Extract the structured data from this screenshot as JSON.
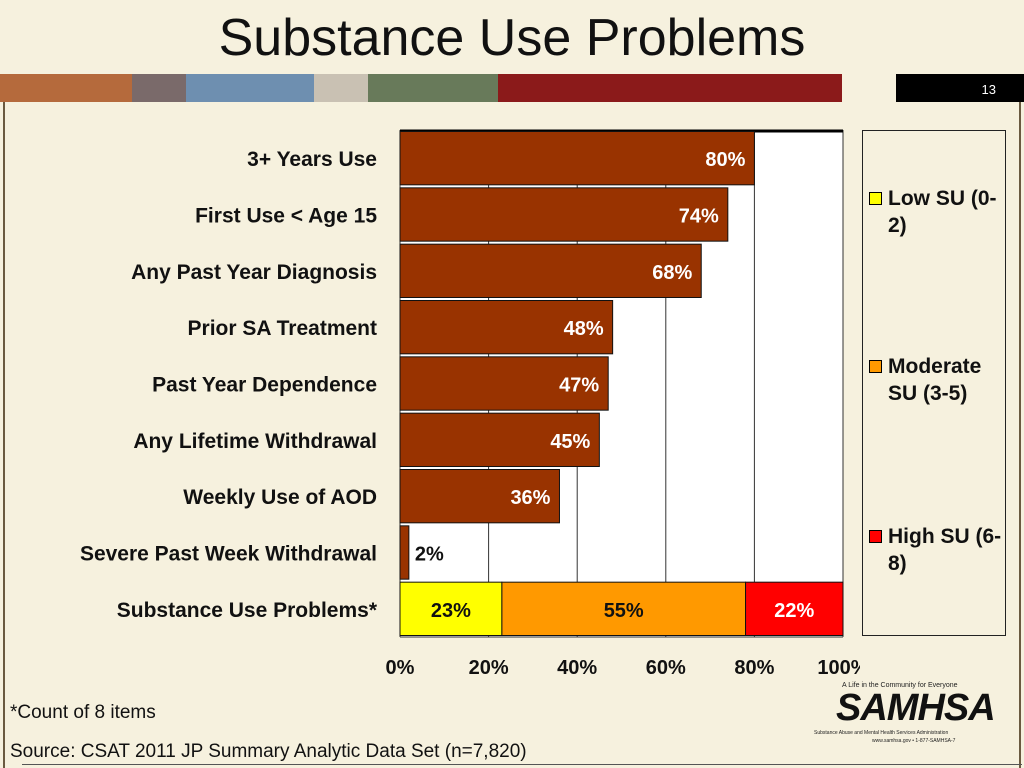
{
  "slide": {
    "title": "Substance Use Problems",
    "page_number": "13",
    "strip_colors": [
      "#b56a3c",
      "#7a6a6a",
      "#6e8fb0",
      "#c9c1b3",
      "#687a5a",
      "#8b1a1a",
      "#f6f1de"
    ]
  },
  "chart_data": {
    "type": "bar",
    "orientation": "horizontal",
    "title": "",
    "xlabel": "",
    "ylabel": "",
    "xlim": [
      0,
      100
    ],
    "xticks": [
      "0%",
      "20%",
      "40%",
      "60%",
      "80%",
      "100%"
    ],
    "grid": true,
    "legend_position": "right",
    "categories": [
      "3+ Years Use",
      "First Use < Age 15",
      "Any Past Year Diagnosis",
      "Prior SA Treatment",
      "Past Year Dependence",
      "Any Lifetime Withdrawal",
      "Weekly Use of AOD",
      "Severe Past Week Withdrawal"
    ],
    "values": [
      80,
      74,
      68,
      48,
      47,
      45,
      36,
      2
    ],
    "value_labels": [
      "80%",
      "74%",
      "68%",
      "48%",
      "47%",
      "45%",
      "36%",
      "2%"
    ],
    "bar_color": "#993300",
    "stacked_bar": {
      "category": "Substance Use Problems*",
      "segments": [
        {
          "name": "Low SU (0-2)",
          "value": 23,
          "label": "23%",
          "color": "#ffff00"
        },
        {
          "name": "Moderate SU (3-5)",
          "value": 55,
          "label": "55%",
          "color": "#ff9900"
        },
        {
          "name": "High SU (6-8)",
          "value": 22,
          "label": "22%",
          "color": "#ff0000"
        }
      ]
    },
    "legend": [
      {
        "label": "Low SU (0-2)",
        "color": "#ffff00"
      },
      {
        "label": "Moderate SU (3-5)",
        "color": "#ff9900"
      },
      {
        "label": "High SU (6-8)",
        "color": "#ff0000"
      }
    ]
  },
  "footnote": "*Count of 8 items",
  "source": "Source: CSAT 2011 JP Summary Analytic Data Set (n=7,820)",
  "logo": {
    "tagline": "A Life in the Community for Everyone",
    "name": "SAMHSA",
    "subtitle": "Substance Abuse and Mental Health Services Administration",
    "contact": "www.samhsa.gov • 1-877-SAMHSA-7"
  }
}
